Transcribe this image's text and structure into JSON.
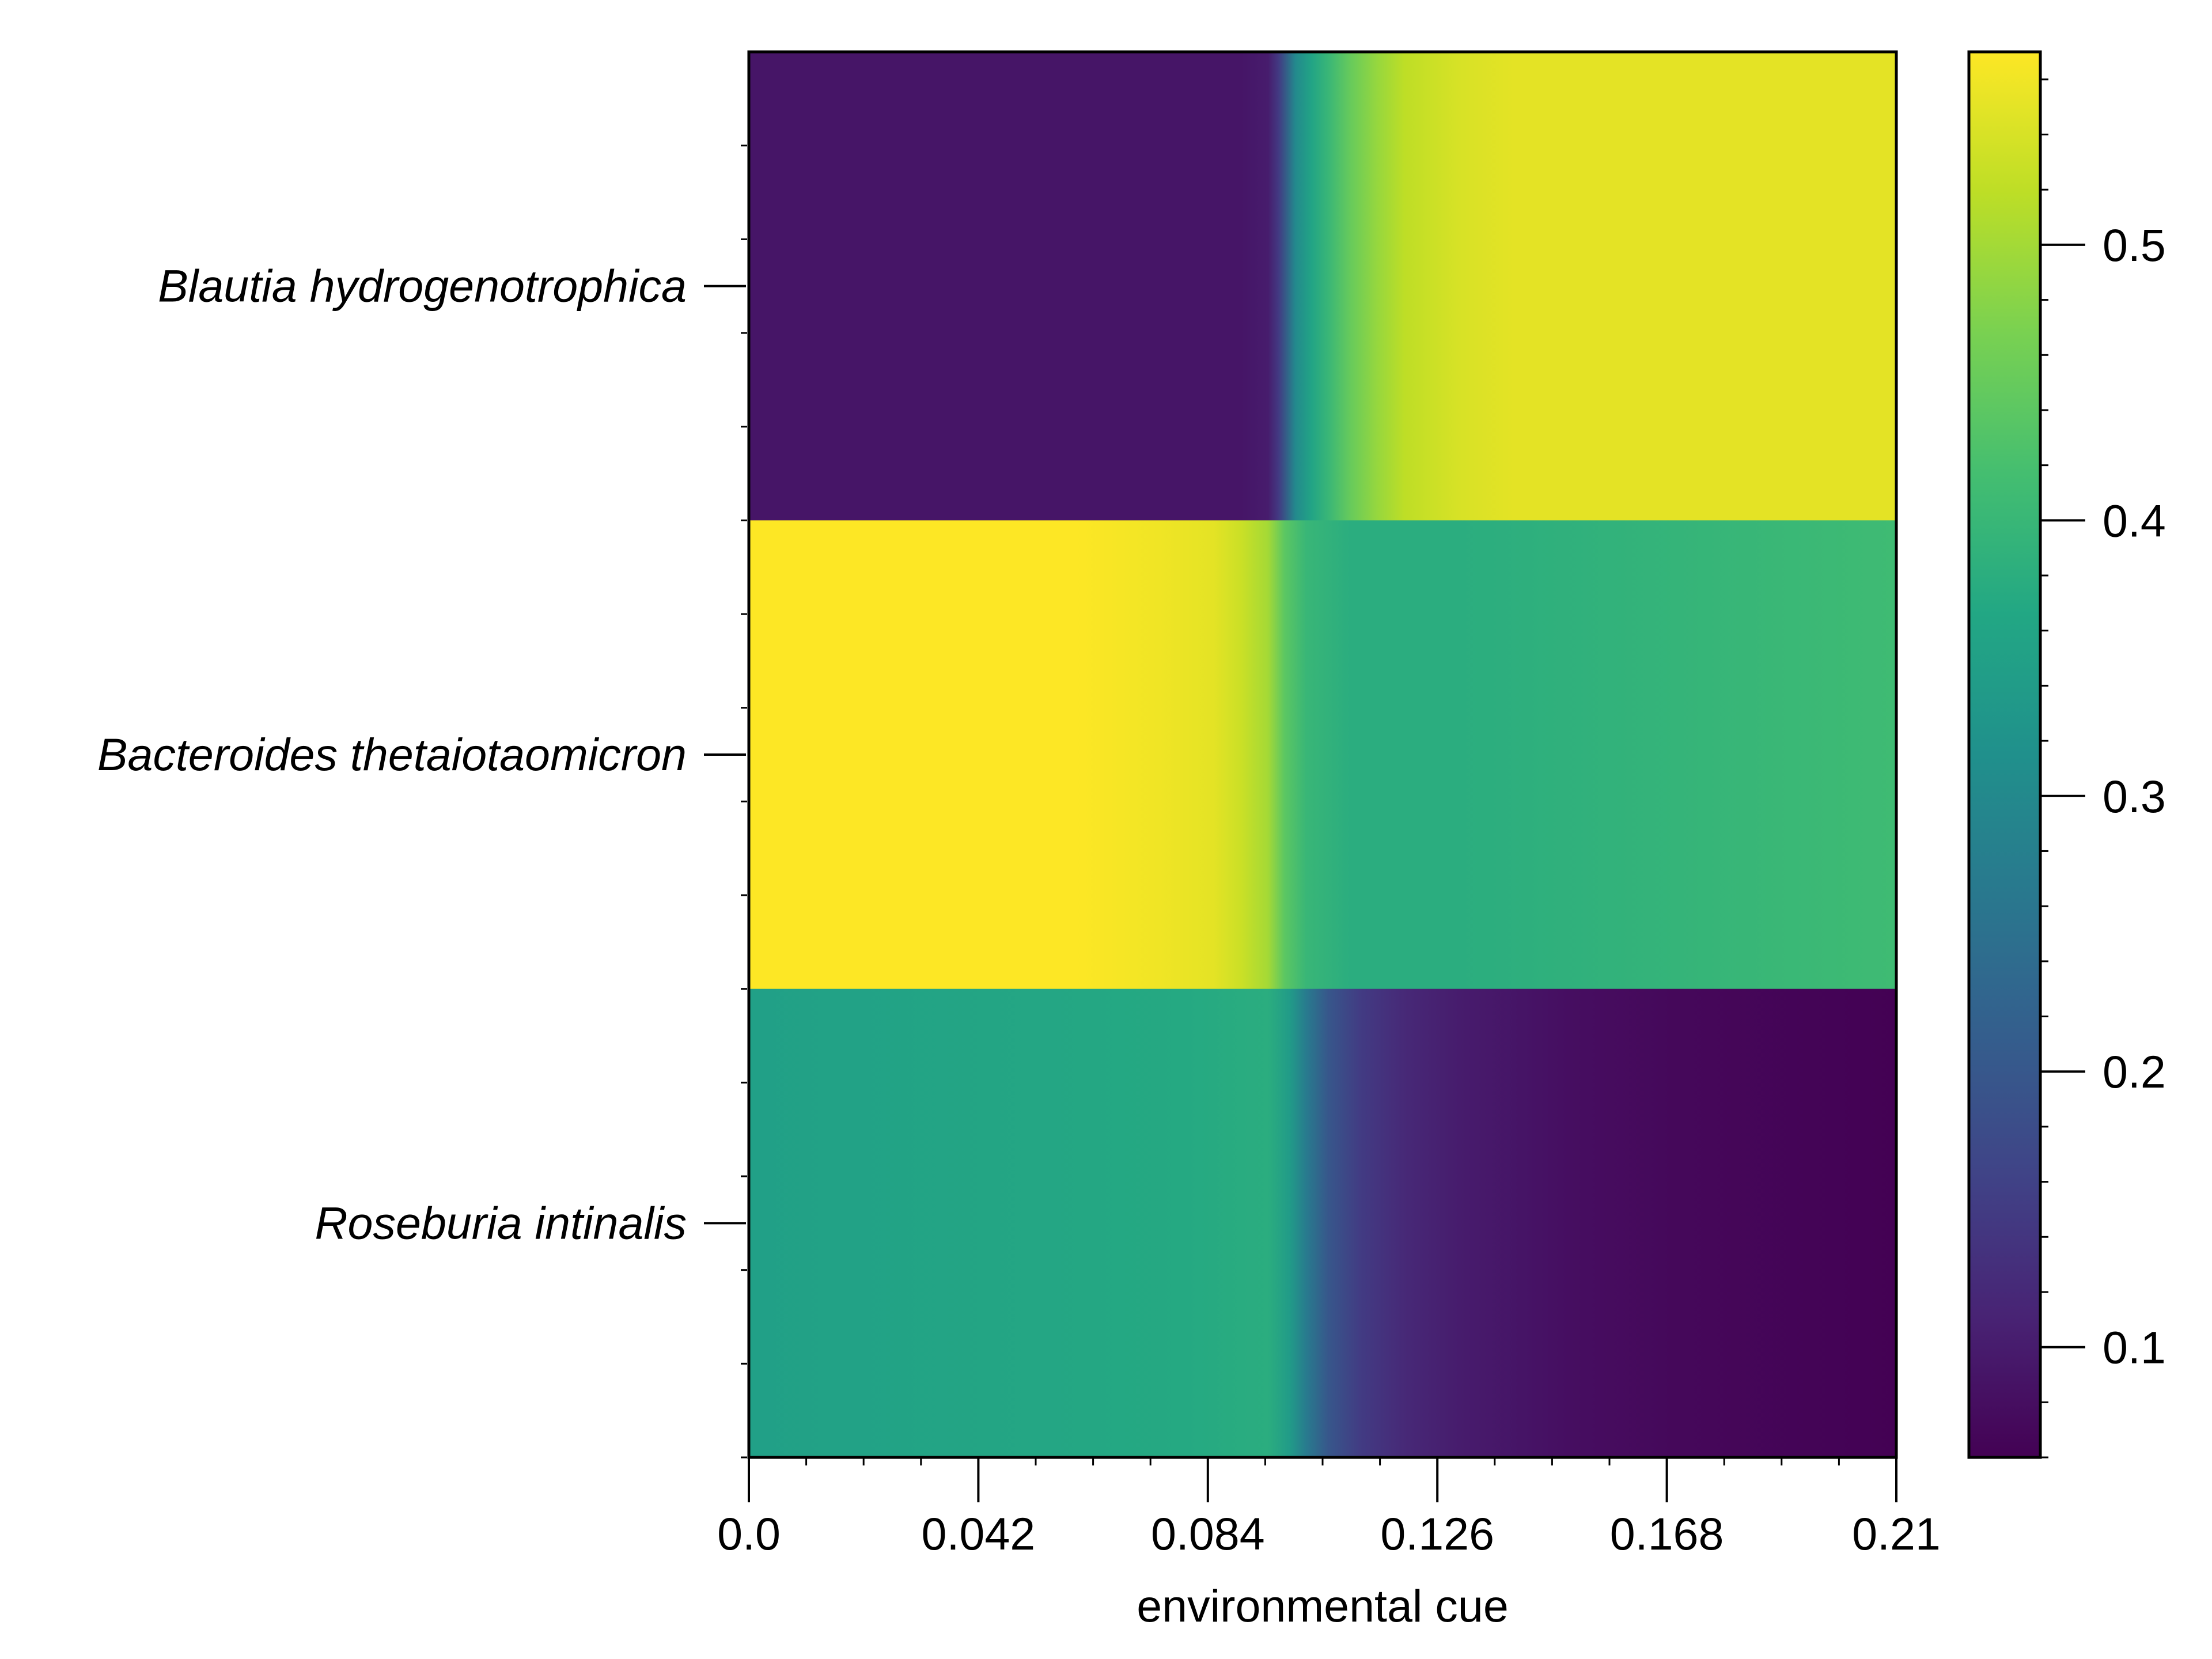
{
  "chart_data": {
    "type": "heatmap",
    "title": "",
    "xlabel": "environmental cue",
    "ylabel": "",
    "xlim": [
      0.0,
      0.21
    ],
    "x_ticks": [
      "0.0",
      "0.042",
      "0.084",
      "0.126",
      "0.168",
      "0.21"
    ],
    "rows": [
      "Blautia hydrogenotrophica",
      "Bacteroides thetaiotaomicron",
      "Roseburia intinalis"
    ],
    "colormap": "viridis",
    "colorbar": {
      "vmin": 0.06,
      "vmax": 0.57,
      "ticks": [
        "0.1",
        "0.2",
        "0.3",
        "0.4",
        "0.5"
      ]
    },
    "profiles": [
      {
        "name": "Blautia hydrogenotrophica",
        "x": [
          0.0,
          0.09,
          0.095,
          0.097,
          0.1,
          0.103,
          0.106,
          0.11,
          0.115,
          0.12,
          0.13,
          0.14,
          0.21
        ],
        "values": [
          0.09,
          0.09,
          0.1,
          0.15,
          0.3,
          0.36,
          0.4,
          0.45,
          0.49,
          0.52,
          0.54,
          0.55,
          0.55
        ]
      },
      {
        "name": "Bacteroides thetaiotaomicron",
        "x": [
          0.0,
          0.06,
          0.075,
          0.085,
          0.09,
          0.095,
          0.098,
          0.102,
          0.11,
          0.13,
          0.21
        ],
        "values": [
          0.57,
          0.57,
          0.56,
          0.55,
          0.53,
          0.5,
          0.44,
          0.4,
          0.38,
          0.38,
          0.41
        ]
      },
      {
        "name": "Roseburia intinalis",
        "x": [
          0.0,
          0.08,
          0.095,
          0.099,
          0.102,
          0.106,
          0.112,
          0.12,
          0.13,
          0.15,
          0.17,
          0.21
        ],
        "values": [
          0.35,
          0.37,
          0.38,
          0.34,
          0.27,
          0.2,
          0.15,
          0.12,
          0.1,
          0.08,
          0.07,
          0.06
        ]
      }
    ]
  }
}
